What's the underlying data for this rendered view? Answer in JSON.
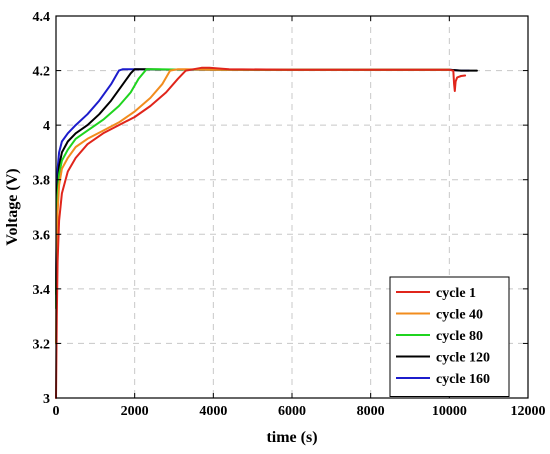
{
  "chart_data": {
    "type": "line",
    "xlabel": "time (s)",
    "ylabel": "Voltage (V)",
    "xlim": [
      0,
      12000
    ],
    "ylim": [
      3.0,
      4.4
    ],
    "xticks": [
      0,
      2000,
      4000,
      6000,
      8000,
      10000,
      12000
    ],
    "yticks": [
      3,
      3.2,
      3.4,
      3.6,
      3.8,
      4,
      4.2,
      4.4
    ],
    "xtick_labels": [
      "0",
      "2000",
      "4000",
      "6000",
      "8000",
      "10000",
      "12000"
    ],
    "ytick_labels": [
      "3",
      "3.2",
      "3.4",
      "3.6",
      "3.8",
      "4",
      "4.2",
      "4.4"
    ],
    "grid": true,
    "legend_position": "bottom-right",
    "series": [
      {
        "name": "cycle 1",
        "color": "#e0251b",
        "x": [
          0,
          20,
          40,
          80,
          150,
          300,
          500,
          800,
          1200,
          1600,
          2000,
          2400,
          2800,
          3100,
          3300,
          3500,
          3700,
          3900,
          4100,
          4400,
          6000,
          8000,
          10000,
          10100,
          10120,
          10140,
          10160,
          10200,
          10300,
          10400
        ],
        "y": [
          3.0,
          3.3,
          3.5,
          3.65,
          3.75,
          3.83,
          3.88,
          3.93,
          3.97,
          4.0,
          4.03,
          4.07,
          4.12,
          4.17,
          4.2,
          4.205,
          4.21,
          4.21,
          4.208,
          4.205,
          4.203,
          4.203,
          4.203,
          4.2,
          4.15,
          4.125,
          4.16,
          4.175,
          4.18,
          4.182
        ]
      },
      {
        "name": "cycle 40",
        "color": "#f28c1e",
        "x": [
          0,
          20,
          40,
          80,
          150,
          300,
          500,
          800,
          1200,
          1600,
          2000,
          2400,
          2700,
          2900,
          3100,
          3300,
          3600,
          4000,
          6000,
          8000,
          10000
        ],
        "y": [
          3.2,
          3.5,
          3.68,
          3.78,
          3.84,
          3.88,
          3.92,
          3.95,
          3.98,
          4.01,
          4.05,
          4.1,
          4.15,
          4.2,
          4.205,
          4.205,
          4.204,
          4.203,
          4.203,
          4.203,
          4.203
        ]
      },
      {
        "name": "cycle 80",
        "color": "#1fd41f",
        "x": [
          0,
          20,
          40,
          80,
          150,
          300,
          500,
          800,
          1200,
          1600,
          1900,
          2100,
          2300,
          2600,
          3000,
          6000,
          8000,
          10000
        ],
        "y": [
          3.33,
          3.6,
          3.74,
          3.82,
          3.87,
          3.91,
          3.95,
          3.98,
          4.02,
          4.07,
          4.12,
          4.17,
          4.205,
          4.205,
          4.204,
          4.203,
          4.203,
          4.203
        ]
      },
      {
        "name": "cycle 120",
        "color": "#000000",
        "x": [
          0,
          20,
          40,
          80,
          150,
          300,
          500,
          800,
          1100,
          1400,
          1700,
          1900,
          2000,
          2300,
          2700,
          6000,
          8000,
          10000,
          10300,
          10700
        ],
        "y": [
          3.38,
          3.65,
          3.78,
          3.85,
          3.9,
          3.94,
          3.97,
          4.0,
          4.04,
          4.09,
          4.15,
          4.19,
          4.205,
          4.205,
          4.204,
          4.203,
          4.203,
          4.203,
          4.2,
          4.2
        ]
      },
      {
        "name": "cycle 160",
        "color": "#1c1ccc",
        "x": [
          0,
          20,
          40,
          80,
          150,
          300,
          500,
          800,
          1100,
          1400,
          1600,
          1700,
          2000,
          2500,
          6000,
          8000,
          10000,
          10300,
          10500
        ],
        "y": [
          3.33,
          3.72,
          3.84,
          3.9,
          3.94,
          3.97,
          4.0,
          4.04,
          4.09,
          4.15,
          4.2,
          4.205,
          4.205,
          4.204,
          4.203,
          4.203,
          4.203,
          4.2,
          4.2
        ]
      }
    ]
  }
}
